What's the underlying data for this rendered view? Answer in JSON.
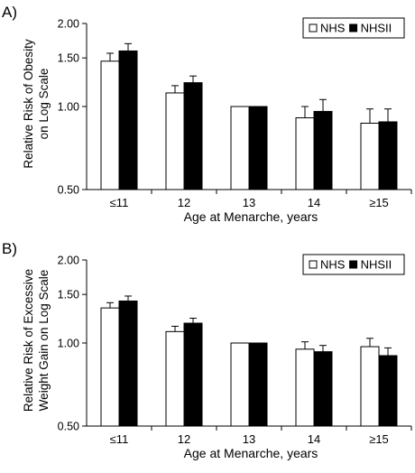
{
  "chart_data": [
    {
      "panel_label": "A)",
      "type": "bar",
      "ylabel_lines": [
        "Relative Risk of Obesity",
        "on Log Scale"
      ],
      "xlabel": "Age at Menarche, years",
      "categories": [
        "≤11",
        "12",
        "13",
        "14",
        "≥15"
      ],
      "yscale": "log",
      "ylim": [
        0.5,
        2.0
      ],
      "yticks": [
        "0.50",
        "1.00",
        "1.50",
        "2.00"
      ],
      "grid": false,
      "legend_placement": "top-right",
      "series": [
        {
          "name": "NHS",
          "values": [
            1.46,
            1.12,
            1.0,
            0.91,
            0.87
          ],
          "error_upper": [
            1.56,
            1.19,
            1.0,
            1.0,
            0.98
          ],
          "fill": "#ffffff"
        },
        {
          "name": "NHSII",
          "values": [
            1.59,
            1.22,
            1.0,
            0.96,
            0.88
          ],
          "error_upper": [
            1.69,
            1.29,
            1.0,
            1.06,
            0.98
          ],
          "fill": "#000000"
        }
      ]
    },
    {
      "panel_label": "B)",
      "type": "bar",
      "ylabel_lines": [
        "Relative Risk of Excessive",
        "Weight Gain on Log Scale"
      ],
      "xlabel": "Age at Menarche, years",
      "categories": [
        "≤11",
        "12",
        "13",
        "14",
        "≥15"
      ],
      "yscale": "log",
      "ylim": [
        0.5,
        2.0
      ],
      "yticks": [
        "0.50",
        "1.00",
        "1.50",
        "2.00"
      ],
      "grid": false,
      "legend_placement": "top-right",
      "series": [
        {
          "name": "NHS",
          "values": [
            1.34,
            1.1,
            1.0,
            0.95,
            0.97
          ],
          "error_upper": [
            1.4,
            1.15,
            1.0,
            1.01,
            1.04
          ],
          "fill": "#ffffff"
        },
        {
          "name": "NHSII",
          "values": [
            1.42,
            1.18,
            1.0,
            0.93,
            0.9
          ],
          "error_upper": [
            1.48,
            1.23,
            1.0,
            0.98,
            0.96
          ],
          "fill": "#000000"
        }
      ]
    }
  ]
}
